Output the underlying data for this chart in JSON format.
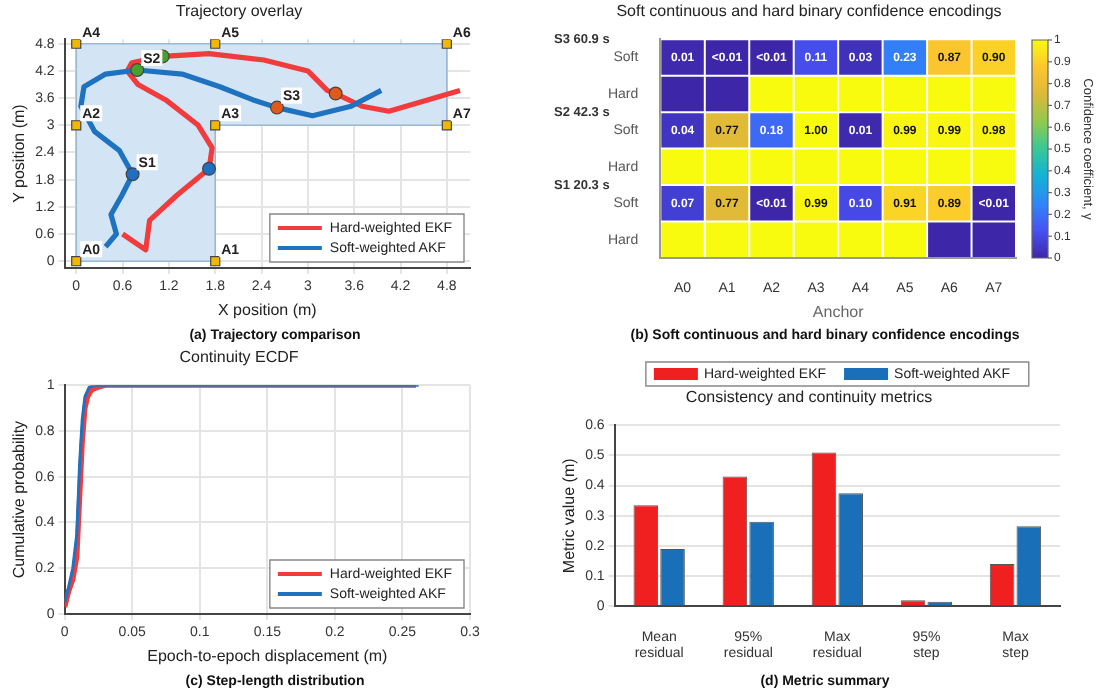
{
  "chart_data": [
    {
      "type": "line",
      "title": "Trajectory overlay",
      "xlabel": "X position (m)",
      "ylabel": "Y position (m)",
      "xlim": [
        -0.15,
        5.1
      ],
      "xticks": [
        0,
        0.6,
        1.2,
        1.8,
        2.4,
        3,
        3.6,
        4.2,
        4.8
      ],
      "ylim": [
        -0.15,
        4.9
      ],
      "yticks": [
        0,
        0.6,
        1.2,
        1.8,
        2.4,
        3,
        3.6,
        4.2,
        4.8
      ],
      "grid": true,
      "legend": "bottom right",
      "marker": "none",
      "line_style": "solid",
      "series": [
        {
          "type": "area",
          "color": "#d3e5f5",
          "x": [
            0,
            4.8,
            4.8,
            1.8,
            1.8,
            0,
            0
          ],
          "values": [
            4.8,
            4.8,
            3,
            3,
            0,
            0,
            4.8
          ]
        },
        {
          "name": "Hard-weighted EKF",
          "color": "#f03c3c",
          "x": [
            0.6,
            0.9,
            0.95,
            1.3,
            1.72,
            1.76,
            1.58,
            1.16,
            0.8,
            0.66,
            0.72,
            1.12,
            1.72,
            2.43,
            3.0,
            3.25,
            3.36,
            3.7,
            4.05,
            4.55,
            4.97
          ],
          "values": [
            0.6,
            0.25,
            0.9,
            1.45,
            2.04,
            2.5,
            3.0,
            3.56,
            3.9,
            4.2,
            4.38,
            4.52,
            4.58,
            4.44,
            4.2,
            3.77,
            3.7,
            3.42,
            3.31,
            3.56,
            3.77
          ]
        },
        {
          "name": "Soft-weighted AKF",
          "color": "#1f72c0",
          "x": [
            0.38,
            0.52,
            0.45,
            0.59,
            0.73,
            0.56,
            0.24,
            0.06,
            0.1,
            0.38,
            0.79,
            1.37,
            1.86,
            2.29,
            2.6,
            3.06,
            3.56,
            3.95
          ],
          "values": [
            0.32,
            0.6,
            1.03,
            1.45,
            1.92,
            2.44,
            2.86,
            3.42,
            3.85,
            4.13,
            4.22,
            4.13,
            3.85,
            3.56,
            3.39,
            3.21,
            3.42,
            3.77
          ]
        },
        {
          "type": "scatter",
          "marker": "square",
          "color": "#f2b705",
          "x": [
            0,
            1.8,
            0,
            1.8,
            0,
            1.8,
            4.8,
            4.8
          ],
          "values": [
            0,
            0,
            3,
            3,
            4.8,
            4.8,
            4.8,
            3
          ]
        },
        {
          "type": "scatter",
          "marker": "circle",
          "colors": [
            "#1f6fc0",
            "#1f6fc0",
            "#4aa02c",
            "#4aa02c",
            "#e05a1a",
            "#e05a1a"
          ],
          "x": [
            0.73,
            1.72,
            0.79,
            1.12,
            2.6,
            3.36
          ],
          "values": [
            1.92,
            2.04,
            4.22,
            4.52,
            3.39,
            3.7
          ]
        }
      ],
      "annotations": [
        {
          "text": "A0",
          "x": 0,
          "y": 0
        },
        {
          "text": "A1",
          "x": 1.8,
          "y": 0
        },
        {
          "text": "A2",
          "x": 0,
          "y": 3
        },
        {
          "text": "A3",
          "x": 1.8,
          "y": 3
        },
        {
          "text": "A4",
          "x": 0,
          "y": 4.8
        },
        {
          "text": "A5",
          "x": 1.8,
          "y": 4.8
        },
        {
          "text": "A6",
          "x": 4.8,
          "y": 4.8
        },
        {
          "text": "A7",
          "x": 4.8,
          "y": 3
        },
        {
          "text": "S1",
          "x": 0.73,
          "y": 1.92
        },
        {
          "text": "S2",
          "x": 0.79,
          "y": 4.22
        },
        {
          "text": "S3",
          "x": 2.6,
          "y": 3.39
        },
        "(a) Trajectory comparison"
      ]
    },
    {
      "type": "heatmap",
      "title": "Soft continuous and hard binary confidence encodings",
      "xlabel": "Anchor",
      "clabel": "Confidence coefficient, γ",
      "categories": [
        "A0",
        "A1",
        "A2",
        "A3",
        "A4",
        "A5",
        "A6",
        "A7"
      ],
      "y_categories": [
        "Soft",
        "Hard",
        "Soft",
        "Hard",
        "Soft",
        "Hard"
      ],
      "cells": [
        [
          0.01,
          0,
          0,
          0.11,
          0.03,
          0.23,
          0.87,
          0.9
        ],
        [
          0,
          0,
          1,
          1,
          1,
          1,
          1,
          1
        ],
        [
          0.04,
          0.77,
          0.18,
          1,
          0.01,
          0.99,
          0.99,
          0.98
        ],
        [
          1,
          1,
          1,
          1,
          1,
          1,
          1,
          1
        ],
        [
          0.07,
          0.77,
          0,
          0.99,
          0.1,
          0.91,
          0.89,
          0
        ],
        [
          1,
          1,
          1,
          1,
          1,
          1,
          0,
          0
        ]
      ],
      "cell_labels": [
        [
          "0.01",
          "<0.01",
          "<0.01",
          "0.11",
          "0.03",
          "0.23",
          "0.87",
          "0.90"
        ],
        null,
        [
          "0.04",
          "0.77",
          "0.18",
          "1.00",
          "0.01",
          "0.99",
          "0.99",
          "0.98"
        ],
        null,
        [
          "0.07",
          "0.77",
          "<0.01",
          "0.99",
          "0.10",
          "0.91",
          "0.89",
          "<0.01"
        ],
        null
      ],
      "clim": [
        0,
        1
      ],
      "cticks": [
        0,
        0.1,
        0.2,
        0.3,
        0.4,
        0.5,
        0.6,
        0.7,
        0.8,
        0.9,
        1
      ],
      "annotations": [
        "S3 60.9 s",
        "S2 42.3 s",
        "S1 20.3 s",
        "(b) Soft continuous and hard binary confidence encodings"
      ]
    },
    {
      "type": "line",
      "title": "Continuity ECDF",
      "xlabel": "Epoch-to-epoch displacement (m)",
      "ylabel": "Cumulative probability",
      "xlim": [
        0,
        0.3
      ],
      "xticks": [
        0,
        0.05,
        0.1,
        0.15,
        0.2,
        0.25,
        0.3
      ],
      "ylim": [
        0,
        1
      ],
      "yticks": [
        0,
        0.2,
        0.4,
        0.6,
        0.8,
        1
      ],
      "grid": true,
      "legend": "bottom right",
      "marker": "none",
      "line_style": "solid",
      "series": [
        {
          "name": "Hard-weighted EKF",
          "color": "#f03c3c",
          "x": [
            0,
            0.003,
            0.006,
            0.009,
            0.011,
            0.013,
            0.015,
            0.017,
            0.02,
            0.024,
            0.03,
            0.26
          ],
          "values": [
            0.03,
            0.1,
            0.15,
            0.25,
            0.5,
            0.75,
            0.9,
            0.95,
            0.98,
            0.99,
            1,
            1
          ]
        },
        {
          "name": "Soft-weighted AKF",
          "color": "#1f72c0",
          "x": [
            0,
            0.003,
            0.006,
            0.009,
            0.011,
            0.013,
            0.015,
            0.018,
            0.022,
            0.262
          ],
          "values": [
            0.05,
            0.12,
            0.2,
            0.35,
            0.65,
            0.85,
            0.95,
            0.99,
            1,
            1
          ]
        }
      ],
      "annotations": [
        "(c) Step-length distribution"
      ]
    },
    {
      "type": "bar",
      "title": "Consistency and continuity metrics",
      "ylabel": "Metric value (m)",
      "categories": [
        "Mean residual",
        "95% residual",
        "Max residual",
        "95% step",
        "Max step"
      ],
      "ylim": [
        0,
        0.6
      ],
      "yticks": [
        0,
        0.1,
        0.2,
        0.3,
        0.4,
        0.5,
        0.6
      ],
      "grid": "y",
      "legend": "top",
      "series": [
        {
          "name": "Hard-weighted EKF",
          "color": "#f02020",
          "values": [
            0.335,
            0.43,
            0.51,
            0.02,
            0.14
          ]
        },
        {
          "name": "Soft-weighted AKF",
          "color": "#1a70b8",
          "values": [
            0.19,
            0.28,
            0.375,
            0.015,
            0.265
          ]
        }
      ],
      "annotations": [
        "(d) Metric summary"
      ]
    }
  ]
}
